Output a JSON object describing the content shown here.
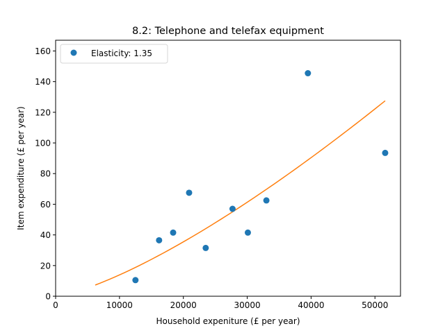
{
  "chart_data": {
    "type": "scatter",
    "title": "8.2: Telephone and telefax equipment",
    "xlabel": "Household expeniture (£ per year)",
    "ylabel": "Item expenditure (£ per year)",
    "xlim": [
      0,
      54000
    ],
    "ylim": [
      0,
      167
    ],
    "xticks": [
      0,
      10000,
      20000,
      30000,
      40000,
      50000
    ],
    "yticks": [
      0,
      20,
      40,
      60,
      80,
      100,
      120,
      140,
      160
    ],
    "legend_position": "upper left",
    "grid": false,
    "series": [
      {
        "name": "Elasticity: 1.35",
        "kind": "scatter",
        "color": "#1f77b4",
        "points": [
          {
            "x": 12500,
            "y": 10.5
          },
          {
            "x": 16200,
            "y": 36.5
          },
          {
            "x": 18400,
            "y": 41.5
          },
          {
            "x": 20900,
            "y": 67.5
          },
          {
            "x": 23500,
            "y": 31.5
          },
          {
            "x": 27700,
            "y": 57.0
          },
          {
            "x": 30100,
            "y": 41.5
          },
          {
            "x": 33000,
            "y": 62.5
          },
          {
            "x": 39500,
            "y": 145.5
          },
          {
            "x": 51600,
            "y": 93.5
          }
        ]
      },
      {
        "kind": "fit-line",
        "color": "#ff7f0e",
        "elasticity": 1.35,
        "x": [
          6200,
          51600
        ],
        "y_at_end": 127.5
      }
    ]
  }
}
